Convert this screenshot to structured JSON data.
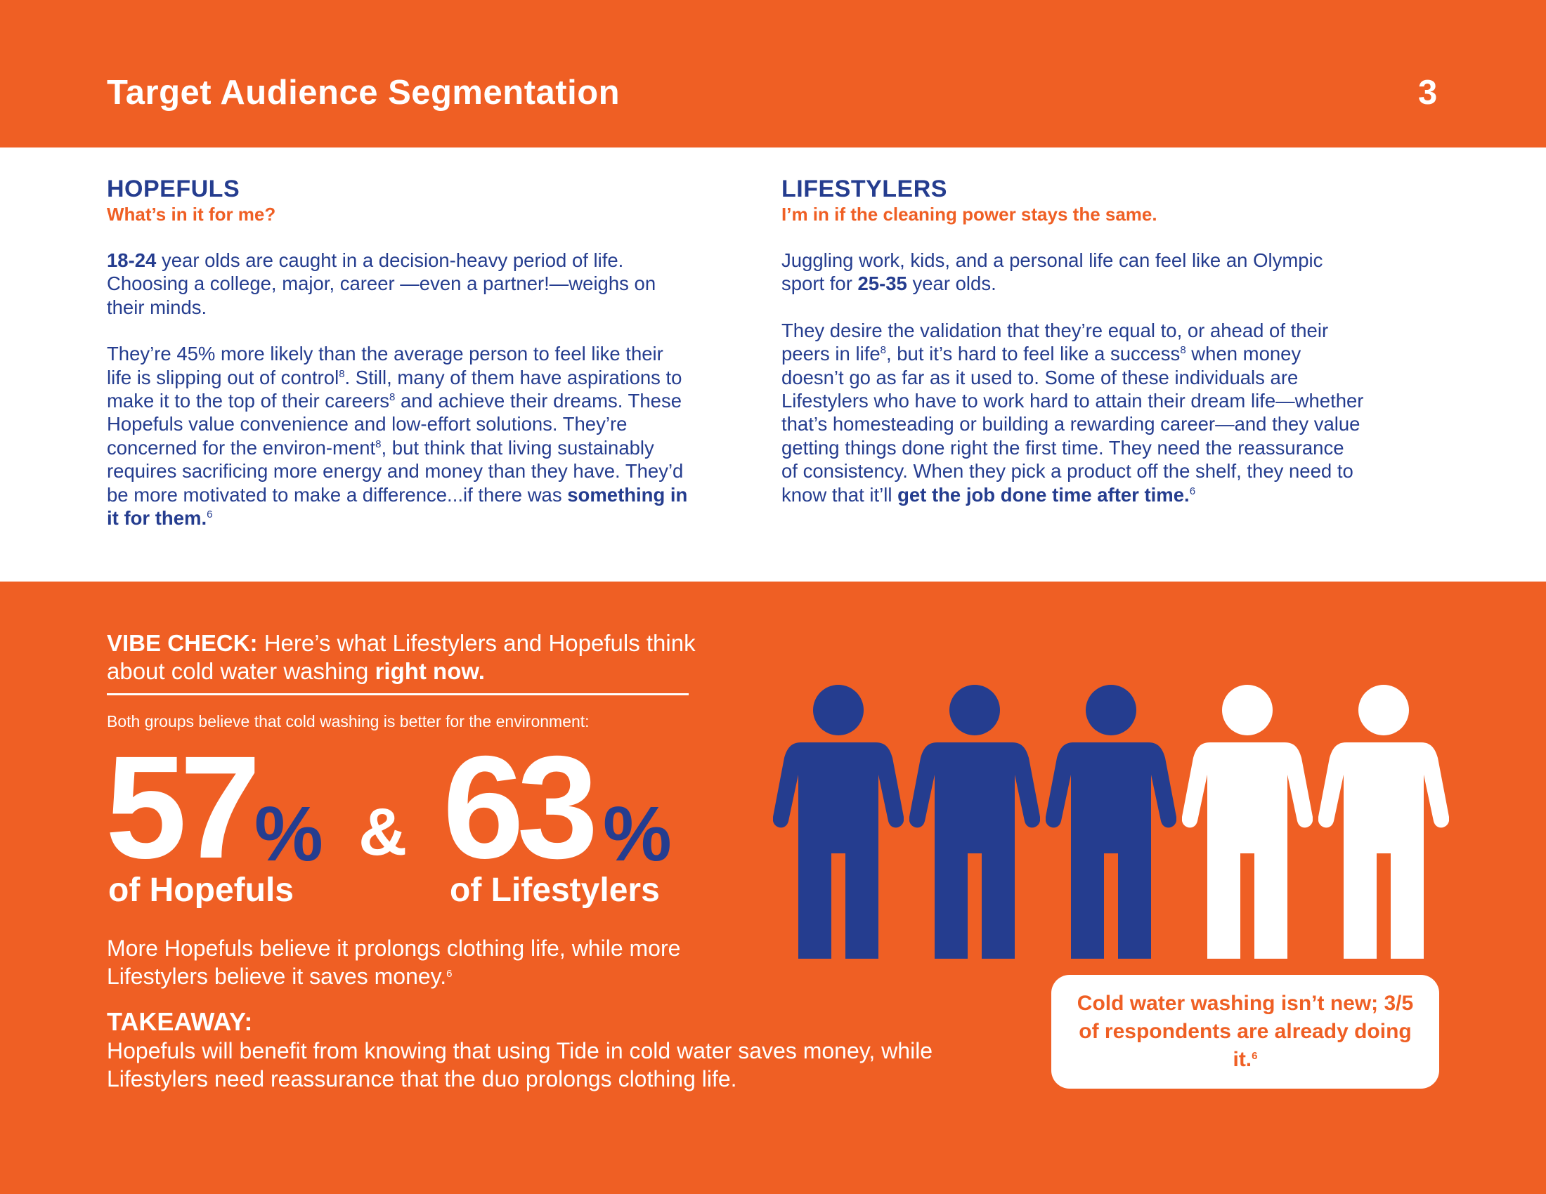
{
  "header": {
    "title": "Target Audience Segmentation",
    "page_number": "3"
  },
  "hopefuls": {
    "heading": "HOPEFULS",
    "subheading": "What’s in it for me?",
    "p1_age": "18-24",
    "p1_rest": " year olds are caught in a decision-heavy period of life. Choosing a college, major, career —even a partner!—weighs on their minds.",
    "p2_a": "They’re 45% more likely than the average person to feel like their life is slipping out of control",
    "p2_b": ". Still, many of them have aspirations to make it to the top of their careers",
    "p2_c": " and achieve their dreams. These Hopefuls value convenience and low-effort solutions. They’re concerned for the environ-ment",
    "p2_d": ", but think that living sustainably requires sacrificing more energy and money than they have. They’d be more motivated to make a difference...if there was ",
    "p2_bold": "something in it for them.",
    "ref8": "8",
    "ref6": "6"
  },
  "lifestylers": {
    "heading": "LIFESTYLERS",
    "subheading": "I’m in if the cleaning power stays the same.",
    "p1_a": "Juggling work, kids, and a personal life can feel like an Olympic sport for ",
    "p1_age": "25-35",
    "p1_b": " year olds.",
    "p2_a": "They desire the validation that they’re equal to, or ahead of their peers in life",
    "p2_b": ", but it’s hard to feel like a success",
    "p2_c": " when money doesn’t go as far as it used to. Some of these individuals are Lifestylers who have to work hard to attain their dream life—whether that’s homesteading or building a rewarding career—and they value getting things done right the first time. They need the reassurance of consistency. When they pick a product off the shelf, they need to know that it’ll ",
    "p2_bold": "get the job done time after time.",
    "ref8": "8",
    "ref6": "6"
  },
  "vibe_check": {
    "label": "VIBE CHECK:",
    "text": " Here’s what Lifestylers and Hopefuls think about cold water washing ",
    "bold_end": "right now.",
    "both_groups": "Both groups believe that cold washing is better for the environment:"
  },
  "stats": {
    "hopefuls_value": "57",
    "lifestylers_value": "63",
    "percent_sign": "%",
    "ampersand": "&",
    "hopefuls_caption": "of Hopefuls",
    "lifestylers_caption": "of Lifestylers"
  },
  "more_text": "More Hopefuls believe it prolongs clothing life, while more Lifestylers believe it saves money.",
  "more_ref": "6",
  "takeaway": {
    "label": "TAKEAWAY:",
    "text": "Hopefuls will benefit from knowing that using Tide in cold water saves money, while Lifestylers need reassurance that the duo prolongs clothing life."
  },
  "people_graphic": {
    "total": 5,
    "highlighted": 3,
    "highlight_color": "#253d8f",
    "other_color": "#ffffff",
    "icon": "person-icon"
  },
  "callout": {
    "text": "Cold water washing isn’t new; 3/5 of respondents are already doing it.",
    "ref": "6"
  },
  "colors": {
    "orange": "#ef5f24",
    "navy": "#253d8f"
  }
}
